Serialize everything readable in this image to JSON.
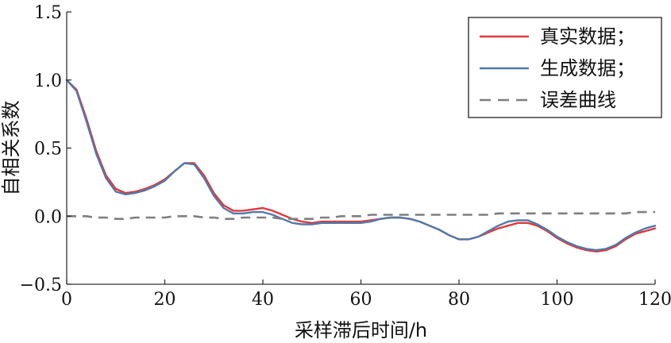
{
  "chart_data": {
    "type": "line",
    "xlabel": "采样滞后时间/h",
    "ylabel": "自相关系数",
    "xlim": [
      0,
      120
    ],
    "ylim": [
      -0.5,
      1.5
    ],
    "xticks": [
      "0",
      "20",
      "40",
      "60",
      "80",
      "100",
      "120"
    ],
    "yticks": [
      "−0.5",
      "0.0",
      "0.5",
      "1.0",
      "1.5"
    ],
    "grid": false,
    "legend_position": "top-right",
    "x": [
      0,
      2,
      4,
      6,
      8,
      10,
      12,
      14,
      16,
      18,
      20,
      22,
      24,
      26,
      28,
      30,
      32,
      34,
      36,
      38,
      40,
      42,
      44,
      46,
      48,
      50,
      52,
      54,
      56,
      58,
      60,
      62,
      64,
      66,
      68,
      70,
      72,
      74,
      76,
      78,
      80,
      82,
      84,
      86,
      88,
      90,
      92,
      94,
      96,
      98,
      100,
      102,
      104,
      106,
      108,
      110,
      112,
      114,
      116,
      118,
      120
    ],
    "series": [
      {
        "name": "真实数据；",
        "color": "#e0393e",
        "dash": "solid",
        "values": [
          1.0,
          0.93,
          0.72,
          0.48,
          0.3,
          0.2,
          0.17,
          0.18,
          0.2,
          0.23,
          0.27,
          0.33,
          0.39,
          0.39,
          0.3,
          0.17,
          0.08,
          0.04,
          0.04,
          0.05,
          0.06,
          0.04,
          0.01,
          -0.02,
          -0.04,
          -0.05,
          -0.04,
          -0.04,
          -0.04,
          -0.04,
          -0.04,
          -0.03,
          -0.02,
          -0.01,
          -0.01,
          -0.02,
          -0.04,
          -0.07,
          -0.1,
          -0.14,
          -0.17,
          -0.17,
          -0.15,
          -0.12,
          -0.09,
          -0.07,
          -0.05,
          -0.05,
          -0.07,
          -0.11,
          -0.16,
          -0.2,
          -0.23,
          -0.25,
          -0.26,
          -0.25,
          -0.22,
          -0.17,
          -0.13,
          -0.11,
          -0.09
        ]
      },
      {
        "name": "生成数据；",
        "color": "#5179a8",
        "dash": "solid",
        "values": [
          1.0,
          0.92,
          0.7,
          0.46,
          0.28,
          0.18,
          0.16,
          0.17,
          0.19,
          0.22,
          0.26,
          0.33,
          0.39,
          0.38,
          0.28,
          0.15,
          0.06,
          0.02,
          0.02,
          0.03,
          0.03,
          0.01,
          -0.02,
          -0.05,
          -0.06,
          -0.06,
          -0.05,
          -0.05,
          -0.05,
          -0.05,
          -0.05,
          -0.04,
          -0.02,
          -0.01,
          -0.01,
          -0.02,
          -0.04,
          -0.07,
          -0.1,
          -0.14,
          -0.17,
          -0.17,
          -0.15,
          -0.11,
          -0.07,
          -0.04,
          -0.03,
          -0.03,
          -0.06,
          -0.1,
          -0.15,
          -0.19,
          -0.22,
          -0.24,
          -0.25,
          -0.24,
          -0.21,
          -0.16,
          -0.12,
          -0.09,
          -0.07
        ]
      },
      {
        "name": "误差曲线",
        "color": "#7f7f7f",
        "dash": "dashed",
        "values": [
          0.0,
          0.0,
          0.0,
          -0.01,
          -0.01,
          -0.02,
          -0.02,
          -0.01,
          -0.01,
          -0.01,
          -0.01,
          0.0,
          0.0,
          0.0,
          -0.01,
          -0.01,
          -0.02,
          -0.02,
          -0.01,
          -0.01,
          -0.01,
          -0.01,
          -0.02,
          -0.02,
          -0.02,
          -0.02,
          -0.01,
          -0.01,
          0.0,
          0.0,
          0.0,
          0.01,
          0.01,
          0.01,
          0.01,
          0.01,
          0.01,
          0.01,
          0.01,
          0.01,
          0.01,
          0.01,
          0.01,
          0.01,
          0.02,
          0.02,
          0.02,
          0.02,
          0.02,
          0.02,
          0.02,
          0.02,
          0.02,
          0.02,
          0.02,
          0.02,
          0.02,
          0.02,
          0.03,
          0.03,
          0.03
        ]
      }
    ]
  }
}
